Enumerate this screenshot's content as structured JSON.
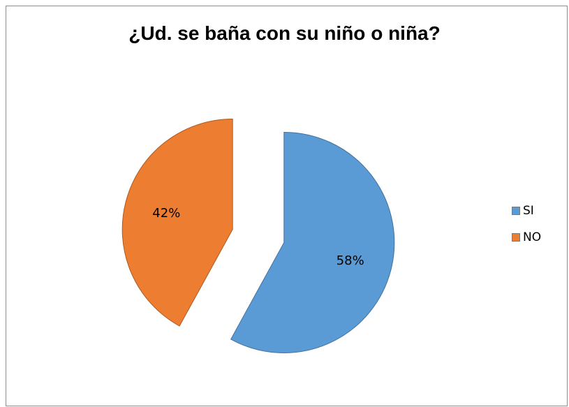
{
  "chart_data": {
    "type": "pie",
    "title": "¿Ud. se baña con su niño o niña?",
    "categories": [
      "SI",
      "NO"
    ],
    "values": [
      58,
      42
    ],
    "data_labels": [
      "58%",
      "42%"
    ],
    "colors": [
      "#5b9bd5",
      "#ed7d31"
    ],
    "exploded": true,
    "legend_position": "right"
  }
}
